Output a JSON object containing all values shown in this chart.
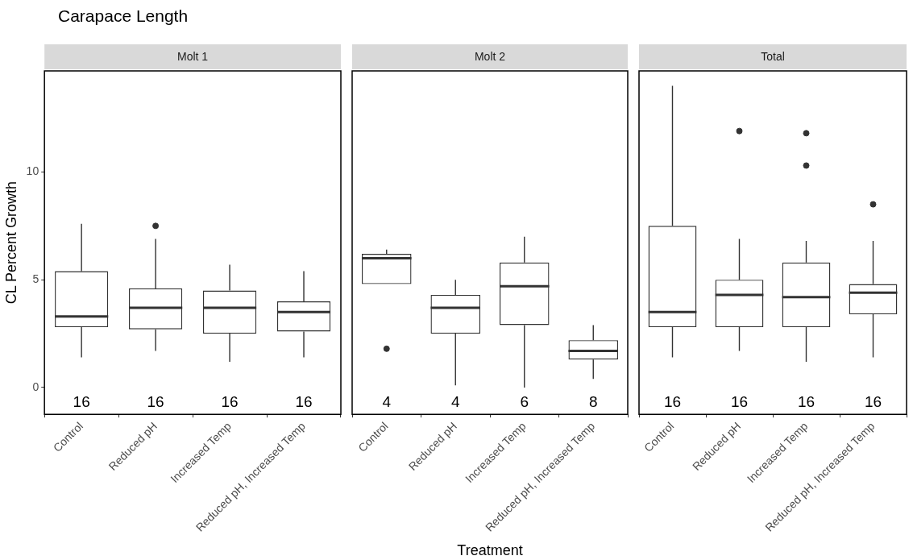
{
  "chart_data": [
    {
      "type": "box",
      "title": "Carapace Length",
      "subtitle": "Molt 1",
      "ylabel": "CL Percent Growth",
      "categories": [
        "Control",
        "Reduced pH",
        "Increased Temp",
        "Reduced pH, Increased Temp"
      ],
      "ylim": [
        -1.24,
        14.69
      ],
      "yticks": [
        0,
        5,
        10
      ],
      "boxes": [
        {
          "low": 1.4,
          "q1": 2.8,
          "median": 3.3,
          "q3": 5.4,
          "high": 7.6
        },
        {
          "low": 1.7,
          "q1": 2.7,
          "median": 3.7,
          "q3": 4.6,
          "high": 6.9,
          "outliers": [
            7.5
          ]
        },
        {
          "low": 1.2,
          "q1": 2.5,
          "median": 3.7,
          "q3": 4.5,
          "high": 5.7
        },
        {
          "low": 1.4,
          "q1": 2.6,
          "median": 3.5,
          "q3": 4.0,
          "high": 5.4
        }
      ],
      "annotations": [
        "16",
        "16",
        "16",
        "16"
      ]
    },
    {
      "type": "box",
      "subtitle": "Molt 2",
      "xlabel": "Treatment",
      "categories": [
        "Control",
        "Reduced pH",
        "Increased Temp",
        "Reduced pH, Increased Temp"
      ],
      "ylim": [
        -1.24,
        14.69
      ],
      "yticks": [
        0,
        5,
        10
      ],
      "tick_labels": "x",
      "boxes": [
        {
          "low": 4.8,
          "q1": 4.8,
          "median": 6.0,
          "q3": 6.2,
          "high": 6.4,
          "outliers": [
            1.8
          ]
        },
        {
          "low": 0.1,
          "q1": 2.5,
          "median": 3.7,
          "q3": 4.3,
          "high": 5.0
        },
        {
          "low": 0.0,
          "q1": 2.9,
          "median": 4.7,
          "q3": 5.8,
          "high": 7.0
        },
        {
          "low": 0.4,
          "q1": 1.3,
          "median": 1.7,
          "q3": 2.2,
          "high": 2.9
        }
      ],
      "annotations": [
        "4",
        "4",
        "6",
        "8"
      ]
    },
    {
      "type": "box",
      "subtitle": "Total",
      "categories": [
        "Control",
        "Reduced pH",
        "Increased Temp",
        "Reduced pH, Increased Temp"
      ],
      "ylim": [
        -1.24,
        14.69
      ],
      "yticks": [
        0,
        5,
        10
      ],
      "tick_labels": "x",
      "boxes": [
        {
          "low": 1.4,
          "q1": 2.8,
          "median": 3.5,
          "q3": 7.5,
          "high": 14.0
        },
        {
          "low": 1.7,
          "q1": 2.8,
          "median": 4.3,
          "q3": 5.0,
          "high": 6.9,
          "outliers": [
            11.9
          ]
        },
        {
          "low": 1.2,
          "q1": 2.8,
          "median": 4.2,
          "q3": 5.8,
          "high": 6.8,
          "outliers": [
            11.8,
            10.3
          ]
        },
        {
          "low": 1.4,
          "q1": 3.4,
          "median": 4.4,
          "q3": 4.8,
          "high": 6.8,
          "outliers": [
            8.5
          ]
        }
      ],
      "annotations": [
        "16",
        "16",
        "16",
        "16"
      ]
    }
  ]
}
